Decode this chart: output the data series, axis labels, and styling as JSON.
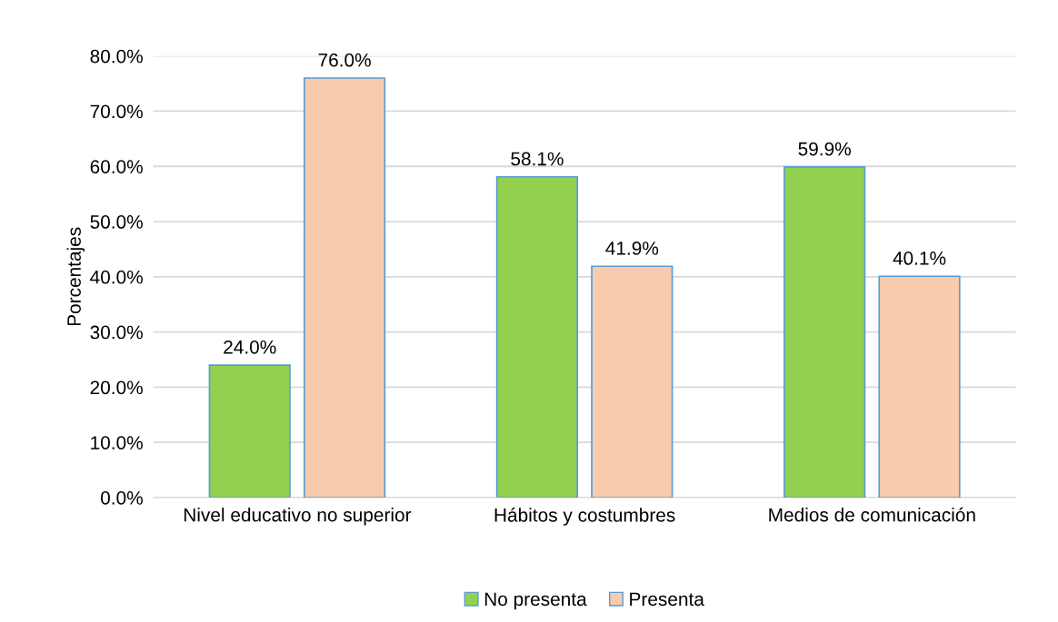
{
  "chart_data": {
    "type": "bar",
    "ylabel": "Porcentajes",
    "categories": [
      "Nivel educativo no superior",
      "Hábitos y costumbres",
      "Medios de comunicación"
    ],
    "series": [
      {
        "name": "No presenta",
        "color": "#92d050",
        "values": [
          24.0,
          58.1,
          59.9
        ],
        "value_labels": [
          "24.0%",
          "58.1%",
          "59.9%"
        ]
      },
      {
        "name": "Presenta",
        "color": "#f8cbad",
        "values": [
          76.0,
          41.9,
          40.1
        ],
        "value_labels": [
          "76.0%",
          "41.9%",
          "40.1%"
        ]
      }
    ],
    "ylim": [
      0,
      80
    ],
    "yticks": [
      {
        "value": 0,
        "label": "0.0%"
      },
      {
        "value": 10,
        "label": "10.0%"
      },
      {
        "value": 20,
        "label": "20.0%"
      },
      {
        "value": 30,
        "label": "30.0%"
      },
      {
        "value": 40,
        "label": "40.0%"
      },
      {
        "value": 50,
        "label": "50.0%"
      },
      {
        "value": 60,
        "label": "60.0%"
      },
      {
        "value": 70,
        "label": "70.0%"
      },
      {
        "value": 80,
        "label": "80.0%"
      }
    ],
    "grid": "y",
    "legend": "bottom"
  }
}
